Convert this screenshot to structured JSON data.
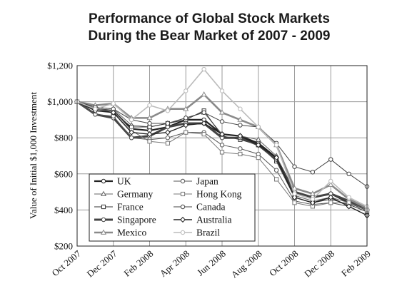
{
  "chart_data": {
    "type": "line",
    "title": [
      "Performance of Global Stock Markets",
      "During the Bear Market of 2007 - 2009"
    ],
    "ylabel": "Value of Initial $1,000 Investment",
    "xlabel": "",
    "x_tick_labels": [
      "Oct 2007",
      "Dec 2007",
      "Feb 2008",
      "Apr 2008",
      "Jun 2008",
      "Aug 2008",
      "Oct 2008",
      "Dec 2008",
      "Feb 2009"
    ],
    "y_tick_labels": [
      "$200",
      "$400",
      "$600",
      "$800",
      "$1,000",
      "$1,200"
    ],
    "ylim": [
      200,
      1200
    ],
    "grid": true,
    "legend_placement": "bottom-left",
    "x": [
      "Oct 2007",
      "Nov 2007",
      "Dec 2007",
      "Jan 2008",
      "Feb 2008",
      "Mar 2008",
      "Apr 2008",
      "May 2008",
      "Jun 2008",
      "Jul 2008",
      "Aug 2008",
      "Sep 2008",
      "Oct 2008",
      "Nov 2008",
      "Dec 2008",
      "Jan 2009",
      "Feb 2009"
    ],
    "series": [
      {
        "name": "UK",
        "color": "#222222",
        "width": 2.2,
        "marker": "circle",
        "values": [
          1000,
          960,
          950,
          850,
          840,
          860,
          900,
          900,
          820,
          810,
          770,
          690,
          500,
          470,
          490,
          440,
          400
        ]
      },
      {
        "name": "Germany",
        "color": "#666666",
        "width": 1,
        "marker": "triangle",
        "values": [
          1000,
          970,
          960,
          870,
          860,
          880,
          910,
          940,
          820,
          810,
          790,
          700,
          480,
          450,
          470,
          440,
          410
        ]
      },
      {
        "name": "France",
        "color": "#333333",
        "width": 1,
        "marker": "square",
        "values": [
          1000,
          960,
          940,
          860,
          860,
          880,
          900,
          950,
          810,
          790,
          760,
          670,
          470,
          440,
          460,
          430,
          390
        ]
      },
      {
        "name": "Singapore",
        "color": "#444444",
        "width": 3,
        "marker": "circle",
        "values": [
          1000,
          930,
          910,
          800,
          810,
          860,
          880,
          880,
          800,
          800,
          760,
          680,
          500,
          470,
          490,
          450,
          400
        ]
      },
      {
        "name": "Mexico",
        "color": "#8a8a8a",
        "width": 2.6,
        "marker": "triangle",
        "values": [
          1000,
          980,
          990,
          910,
          910,
          960,
          960,
          1040,
          940,
          900,
          860,
          760,
          520,
          490,
          540,
          460,
          410
        ]
      },
      {
        "name": "Japan",
        "color": "#555555",
        "width": 1,
        "marker": "circle",
        "values": [
          1000,
          930,
          920,
          800,
          790,
          800,
          830,
          830,
          760,
          740,
          710,
          620,
          450,
          430,
          440,
          420,
          370
        ]
      },
      {
        "name": "Hong Kong",
        "color": "#777777",
        "width": 1,
        "marker": "square",
        "values": [
          1000,
          960,
          950,
          840,
          780,
          770,
          830,
          820,
          720,
          710,
          690,
          570,
          440,
          420,
          440,
          440,
          400
        ]
      },
      {
        "name": "Canada",
        "color": "#444444",
        "width": 1,
        "marker": "circle",
        "values": [
          1000,
          970,
          960,
          900,
          880,
          880,
          910,
          940,
          890,
          870,
          860,
          770,
          640,
          610,
          680,
          600,
          530
        ]
      },
      {
        "name": "Australia",
        "color": "#222222",
        "width": 1.4,
        "marker": "diamond",
        "values": [
          1000,
          950,
          940,
          830,
          820,
          830,
          870,
          880,
          820,
          810,
          760,
          690,
          470,
          440,
          470,
          420,
          370
        ]
      },
      {
        "name": "Brazil",
        "color": "#bbbbbb",
        "width": 1.6,
        "marker": "circle",
        "values": [
          1000,
          960,
          990,
          900,
          980,
          950,
          1060,
          1180,
          1060,
          960,
          860,
          760,
          490,
          460,
          560,
          470,
          420
        ]
      }
    ]
  }
}
